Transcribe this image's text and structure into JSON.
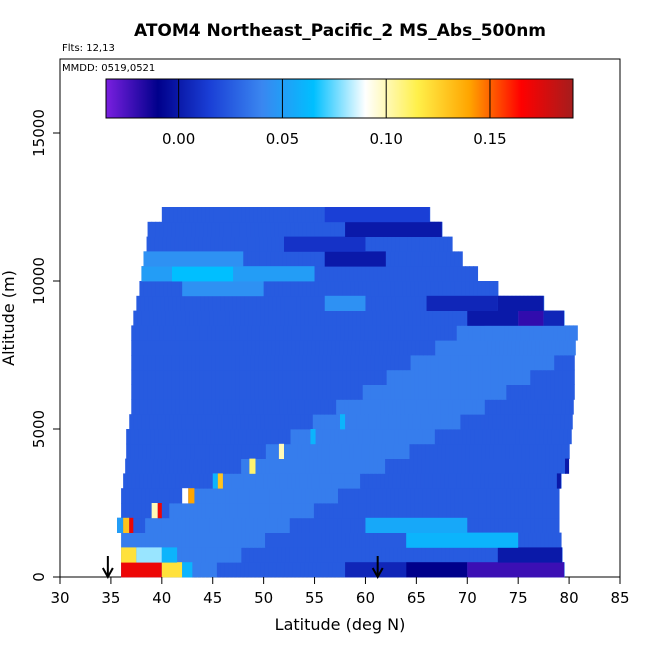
{
  "chart_data": {
    "type": "heatmap",
    "title": "ATOM4 Northeast_Pacific_2 MS_Abs_500nm",
    "flights_label": "Flts: 12,13",
    "dates_label": "MMDD: 0519,0521",
    "xlabel": "Latitude (deg N)",
    "ylabel": "Altitude (m)",
    "xlim": [
      30,
      85
    ],
    "ylim": [
      0,
      17500
    ],
    "x_ticks": [
      "30",
      "35",
      "40",
      "45",
      "50",
      "55",
      "60",
      "65",
      "70",
      "75",
      "80",
      "85"
    ],
    "y_ticks": [
      "0",
      "5000",
      "10000",
      "15000"
    ],
    "colorbar": {
      "range": [
        -0.035,
        0.19
      ],
      "ticks": [
        "0.00",
        "0.05",
        "0.10",
        "0.15"
      ],
      "stops": [
        "#7a1fe0",
        "#00008b",
        "#1a3fd6",
        "#3a86f0",
        "#00bfff",
        "#ffffff",
        "#fff04a",
        "#ffa500",
        "#ff0000",
        "#a51d1d"
      ]
    },
    "arrows_latitude": [
      34.7,
      61.2
    ],
    "curtain": {
      "lat_start": 36.0,
      "layer_height_m": 500,
      "background_value": 0.025,
      "layers": [
        {
          "alt": 250,
          "lat_end": 79.5
        },
        {
          "alt": 750,
          "lat_end": 79.3
        },
        {
          "alt": 1250,
          "lat_end": 79.2
        },
        {
          "alt": 1750,
          "lat_end": 79.0
        },
        {
          "alt": 2250,
          "lat_end": 79.0
        },
        {
          "alt": 2750,
          "lat_end": 79.0
        },
        {
          "alt": 3250,
          "lat_end": 79.2
        },
        {
          "alt": 3750,
          "lat_end": 79.6
        },
        {
          "alt": 4250,
          "lat_end": 80.0
        },
        {
          "alt": 4750,
          "lat_end": 80.2
        },
        {
          "alt": 5250,
          "lat_end": 80.3
        },
        {
          "alt": 5750,
          "lat_end": 80.4
        },
        {
          "alt": 6250,
          "lat_end": 80.5
        },
        {
          "alt": 6750,
          "lat_end": 80.5
        },
        {
          "alt": 7250,
          "lat_end": 80.5
        },
        {
          "alt": 7750,
          "lat_end": 80.6
        },
        {
          "alt": 8250,
          "lat_end": 80.8
        },
        {
          "alt": 8750,
          "lat_end": 79.5
        },
        {
          "alt": 9250,
          "lat_end": 77.5
        },
        {
          "alt": 9750,
          "lat_end": 73.0
        },
        {
          "alt": 10250,
          "lat_end": 71.0
        },
        {
          "alt": 10750,
          "lat_end": 69.5
        },
        {
          "alt": 11250,
          "lat_end": 68.5
        },
        {
          "alt": 11750,
          "lat_end": 67.5
        },
        {
          "alt": 12250,
          "lat_end": 66.3
        }
      ],
      "layer_lat_start": [
        {
          "alt": 250,
          "lat": 36.0
        },
        {
          "alt": 750,
          "lat": 36.0
        },
        {
          "alt": 1250,
          "lat": 36.0
        },
        {
          "alt": 1750,
          "lat": 35.6
        },
        {
          "alt": 2250,
          "lat": 36.0
        },
        {
          "alt": 2750,
          "lat": 36.0
        },
        {
          "alt": 3250,
          "lat": 36.2
        },
        {
          "alt": 3750,
          "lat": 36.4
        },
        {
          "alt": 4250,
          "lat": 36.5
        },
        {
          "alt": 4750,
          "lat": 36.5
        },
        {
          "alt": 5250,
          "lat": 36.8
        },
        {
          "alt": 5750,
          "lat": 37.0
        },
        {
          "alt": 6250,
          "lat": 37.0
        },
        {
          "alt": 6750,
          "lat": 37.0
        },
        {
          "alt": 7250,
          "lat": 37.0
        },
        {
          "alt": 7750,
          "lat": 37.0
        },
        {
          "alt": 8250,
          "lat": 37.0
        },
        {
          "alt": 8750,
          "lat": 37.2
        },
        {
          "alt": 9250,
          "lat": 37.5
        },
        {
          "alt": 9750,
          "lat": 37.8
        },
        {
          "alt": 10250,
          "lat": 38.0
        },
        {
          "alt": 10750,
          "lat": 38.2
        },
        {
          "alt": 11250,
          "lat": 38.5
        },
        {
          "alt": 11750,
          "lat": 38.6
        },
        {
          "alt": 12250,
          "lat": 40.0
        }
      ],
      "features": [
        {
          "alt": 250,
          "lat0": 36.0,
          "lat1": 40.0,
          "value": 0.17
        },
        {
          "alt": 250,
          "lat0": 40.0,
          "lat1": 42.0,
          "value": 0.12
        },
        {
          "alt": 250,
          "lat0": 42.0,
          "lat1": 43.0,
          "value": 0.06
        },
        {
          "alt": 250,
          "lat0": 58.0,
          "lat1": 64.0,
          "value": 0.005
        },
        {
          "alt": 250,
          "lat0": 64.0,
          "lat1": 70.0,
          "value": -0.01
        },
        {
          "alt": 250,
          "lat0": 70.0,
          "lat1": 79.5,
          "value": -0.022
        },
        {
          "alt": 750,
          "lat0": 36.0,
          "lat1": 37.5,
          "value": 0.12
        },
        {
          "alt": 750,
          "lat0": 37.5,
          "lat1": 40.0,
          "value": 0.08
        },
        {
          "alt": 750,
          "lat0": 40.0,
          "lat1": 41.5,
          "value": 0.06
        },
        {
          "alt": 750,
          "lat0": 73.0,
          "lat1": 79.3,
          "value": 0.0
        },
        {
          "alt": 1750,
          "lat0": 35.6,
          "lat1": 36.2,
          "value": 0.05
        },
        {
          "alt": 1750,
          "lat0": 36.2,
          "lat1": 36.8,
          "value": 0.13
        },
        {
          "alt": 1750,
          "lat0": 36.8,
          "lat1": 37.2,
          "value": 0.17
        },
        {
          "alt": 1250,
          "lat0": 64.0,
          "lat1": 75.0,
          "value": 0.06
        },
        {
          "alt": 1750,
          "lat0": 60.0,
          "lat1": 70.0,
          "value": 0.055
        },
        {
          "alt": 2250,
          "lat0": 39.0,
          "lat1": 39.6,
          "value": 0.1
        },
        {
          "alt": 2250,
          "lat0": 39.6,
          "lat1": 40.0,
          "value": 0.17
        },
        {
          "alt": 2750,
          "lat0": 42.0,
          "lat1": 42.6,
          "value": 0.09
        },
        {
          "alt": 2750,
          "lat0": 42.6,
          "lat1": 43.2,
          "value": 0.14
        },
        {
          "alt": 3250,
          "lat0": 45.0,
          "lat1": 45.5,
          "value": 0.06
        },
        {
          "alt": 3250,
          "lat0": 45.5,
          "lat1": 46.0,
          "value": 0.13
        },
        {
          "alt": 3750,
          "lat0": 48.6,
          "lat1": 49.2,
          "value": 0.11
        },
        {
          "alt": 4250,
          "lat0": 51.5,
          "lat1": 52.0,
          "value": 0.1
        },
        {
          "alt": 4750,
          "lat0": 54.6,
          "lat1": 55.1,
          "value": 0.06
        },
        {
          "alt": 5250,
          "lat0": 57.5,
          "lat1": 58.0,
          "value": 0.06
        },
        {
          "alt": 3750,
          "lat0": 79.6,
          "lat1": 80.0,
          "value": 0.0
        },
        {
          "alt": 3250,
          "lat0": 78.8,
          "lat1": 79.2,
          "value": 0.0
        },
        {
          "alt": 9250,
          "lat0": 56.0,
          "lat1": 60.0,
          "value": 0.045
        },
        {
          "alt": 8750,
          "lat0": 70.0,
          "lat1": 75.0,
          "value": 0.0
        },
        {
          "alt": 8750,
          "lat0": 75.0,
          "lat1": 77.5,
          "value": -0.02
        },
        {
          "alt": 8750,
          "lat0": 77.5,
          "lat1": 79.5,
          "value": 0.005
        },
        {
          "alt": 9250,
          "lat0": 66.0,
          "lat1": 73.0,
          "value": 0.005
        },
        {
          "alt": 9250,
          "lat0": 73.0,
          "lat1": 77.5,
          "value": 0.0
        },
        {
          "alt": 9750,
          "lat0": 42.0,
          "lat1": 50.0,
          "value": 0.045
        },
        {
          "alt": 10250,
          "lat0": 38.0,
          "lat1": 55.0,
          "value": 0.05
        },
        {
          "alt": 10250,
          "lat0": 41.0,
          "lat1": 47.0,
          "value": 0.065
        },
        {
          "alt": 10750,
          "lat0": 38.2,
          "lat1": 48.0,
          "value": 0.045
        },
        {
          "alt": 10750,
          "lat0": 56.0,
          "lat1": 62.0,
          "value": 0.0
        },
        {
          "alt": 11250,
          "lat0": 52.0,
          "lat1": 60.0,
          "value": 0.01
        },
        {
          "alt": 11750,
          "lat0": 58.0,
          "lat1": 67.5,
          "value": 0.0
        },
        {
          "alt": 12250,
          "lat0": 56.0,
          "lat1": 66.3,
          "value": 0.015
        }
      ]
    }
  }
}
